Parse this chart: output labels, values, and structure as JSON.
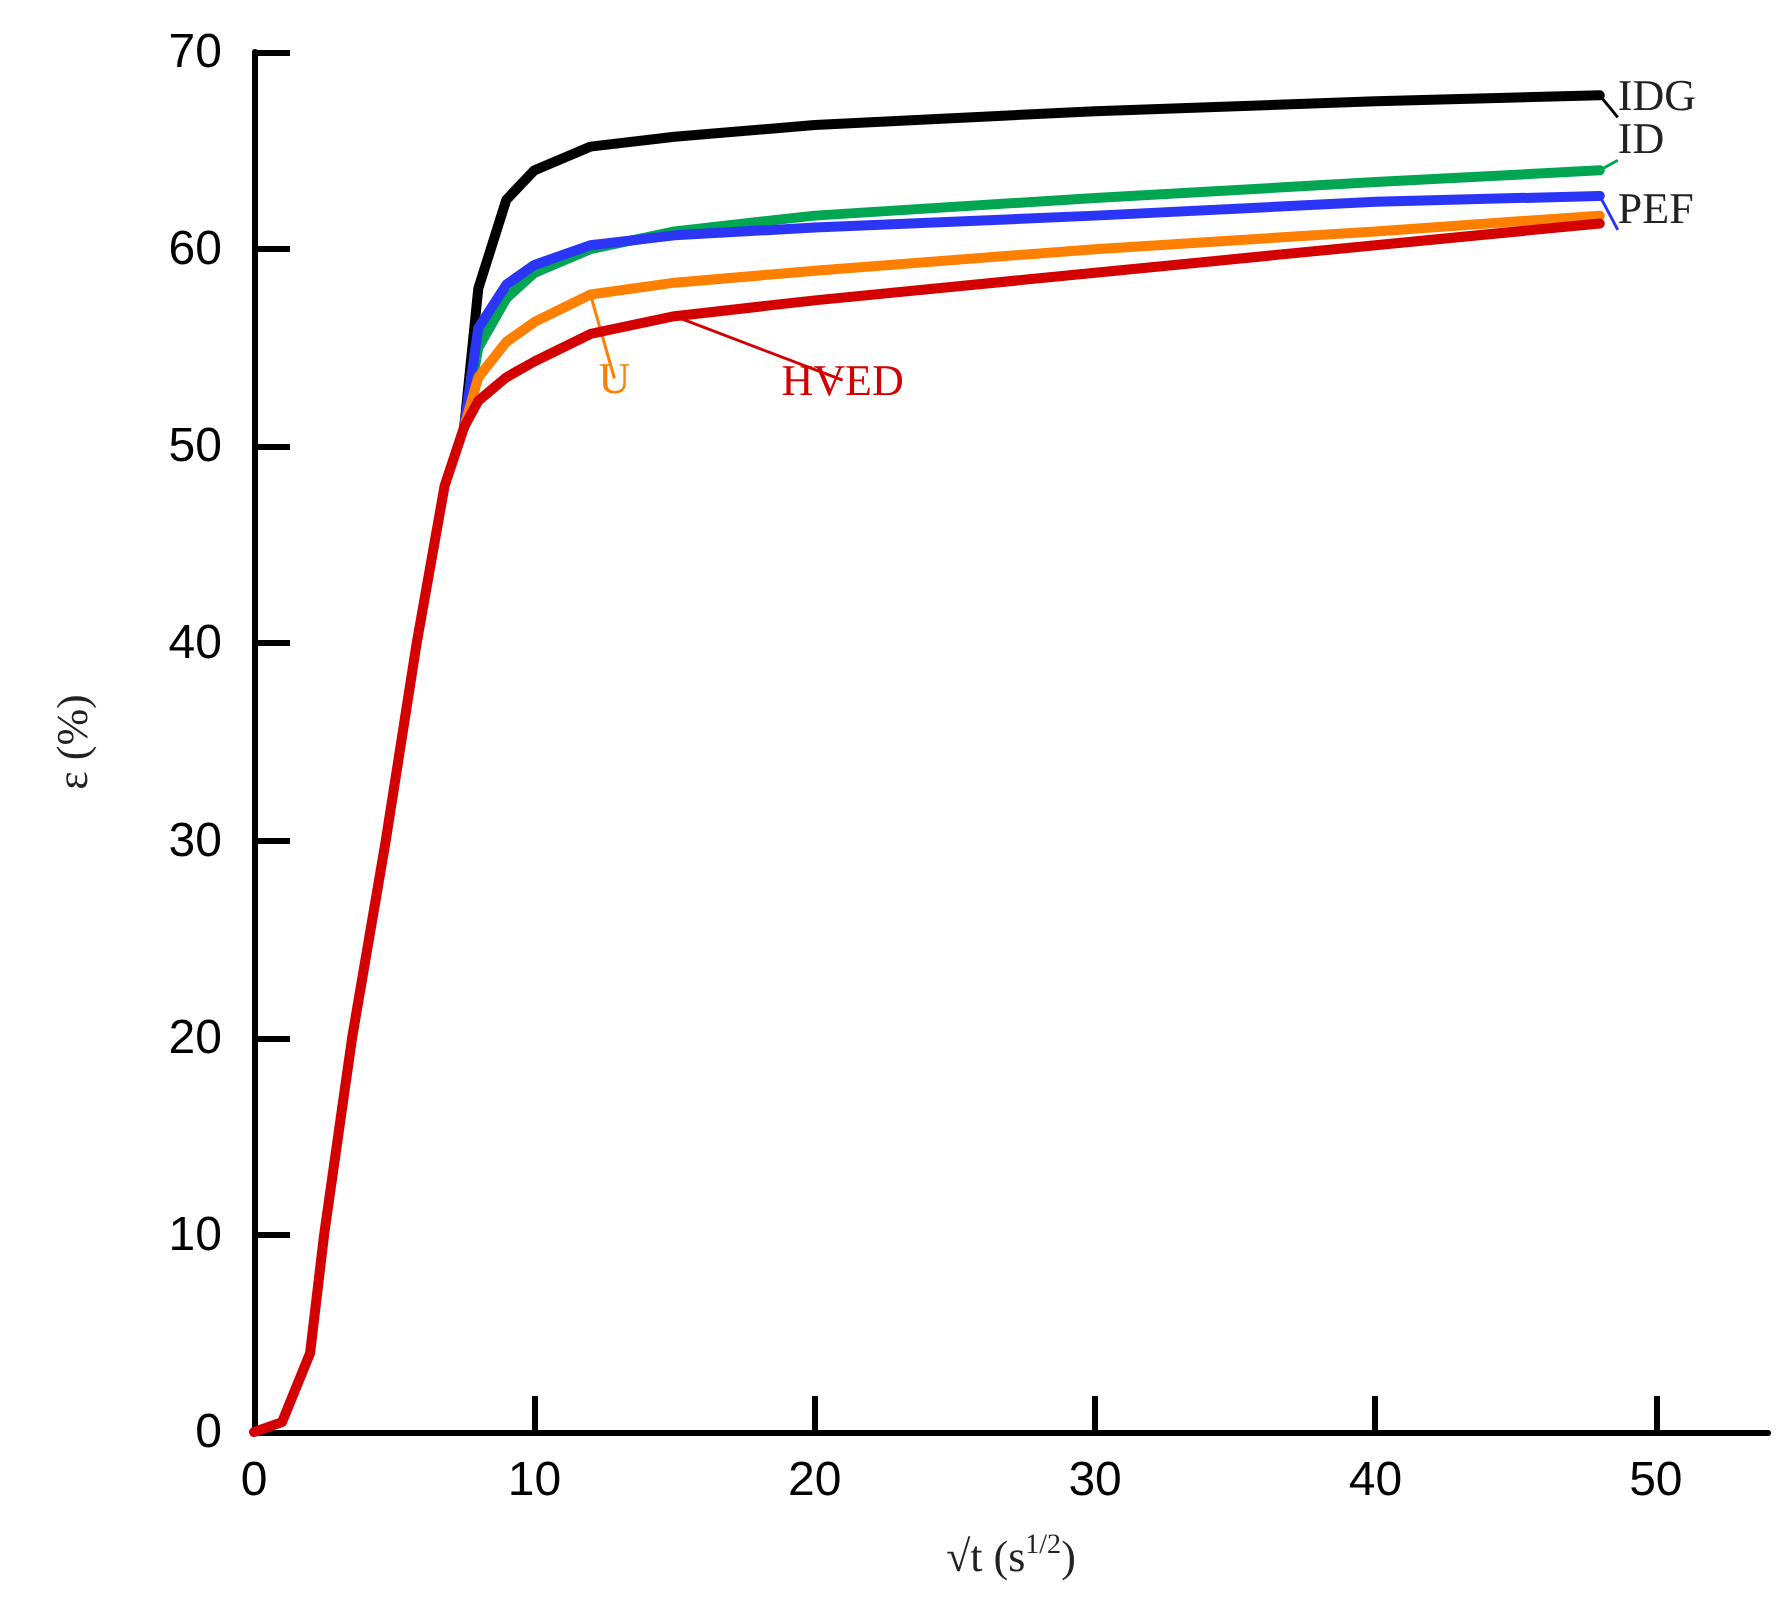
{
  "chart_data": {
    "type": "line",
    "xlabel": "√t (s$^{1/2}$)",
    "ylabel": "ε (%)",
    "xlim": [
      0,
      54
    ],
    "xticks": [
      0,
      10,
      20,
      30,
      40,
      50
    ],
    "ylim": [
      0,
      70
    ],
    "yticks": [
      0,
      10,
      20,
      30,
      40,
      50,
      60,
      70
    ],
    "grid": false,
    "legend": "right",
    "marker": "none",
    "line_style": "solid",
    "series": [
      {
        "name": "IDG",
        "color": "#000000",
        "x": [
          7.5,
          8,
          9,
          10,
          12,
          15,
          20,
          30,
          40,
          48
        ],
        "values": [
          51,
          58,
          62.5,
          64,
          65.2,
          65.7,
          66.3,
          67,
          67.5,
          67.8
        ]
      },
      {
        "name": "ID",
        "color": "#00a651",
        "x": [
          7.5,
          8,
          9,
          10,
          12,
          15,
          20,
          30,
          40,
          48
        ],
        "values": [
          51,
          55,
          57.5,
          58.8,
          60,
          60.9,
          61.7,
          62.6,
          63.4,
          64
        ]
      },
      {
        "name": "PEF",
        "color": "#2b35f5",
        "x": [
          7.5,
          8,
          9,
          10,
          12,
          15,
          20,
          30,
          40,
          48
        ],
        "values": [
          51,
          56,
          58.2,
          59.2,
          60.2,
          60.7,
          61.1,
          61.7,
          62.4,
          62.7
        ]
      },
      {
        "name": "U",
        "color": "#ff7f00",
        "x": [
          7.5,
          8,
          9,
          10,
          12,
          15,
          20,
          30,
          40,
          48
        ],
        "values": [
          51,
          53.5,
          55.3,
          56.3,
          57.7,
          58.3,
          58.9,
          60,
          60.9,
          61.7
        ]
      },
      {
        "name": "HVED",
        "color": "#d40000",
        "x": [
          0,
          1,
          2,
          2.5,
          3.5,
          4.7,
          5.8,
          6.8,
          7.5,
          8,
          9,
          10,
          12,
          15,
          20,
          30,
          40,
          48
        ],
        "values": [
          0,
          0.5,
          4,
          10,
          20,
          30,
          40,
          48,
          51,
          52.3,
          53.5,
          54.3,
          55.7,
          56.6,
          57.4,
          58.8,
          60.2,
          61.3
        ]
      }
    ]
  }
}
